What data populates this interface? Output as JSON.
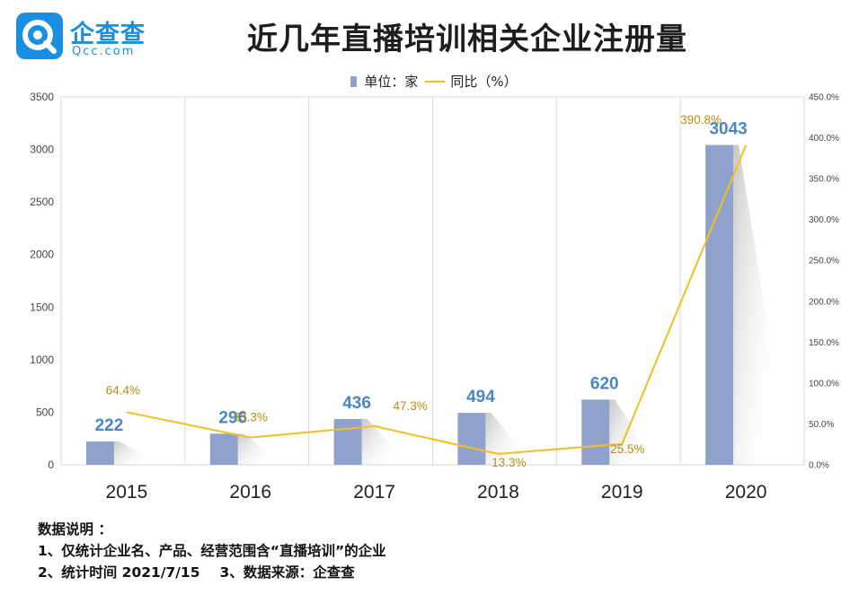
{
  "logo": {
    "name": "企查查",
    "domain": "Qcc.com"
  },
  "title": "近几年直播培训相关企业注册量",
  "colors": {
    "bar": "#8ea2cc",
    "line": "#f0bf23",
    "bar_label": "#4a86c5",
    "line_label": "#b58f12",
    "logo": "#1a8ee0"
  },
  "chart_data": {
    "type": "bar",
    "categories": [
      "2015",
      "2016",
      "2017",
      "2018",
      "2019",
      "2020"
    ],
    "series": [
      {
        "name": "单位：家",
        "type": "bar",
        "axis": "left",
        "values": [
          222,
          296,
          436,
          494,
          620,
          3043
        ],
        "labels": [
          "222",
          "296",
          "436",
          "494",
          "620",
          "3043"
        ]
      },
      {
        "name": "同比（%）",
        "type": "line",
        "axis": "right",
        "values": [
          64.4,
          33.3,
          47.3,
          13.3,
          25.5,
          390.8
        ],
        "labels": [
          "64.4%",
          "33.3%",
          "47.3%",
          "13.3%",
          "25.5%",
          "390.8%"
        ]
      }
    ],
    "y_left": {
      "range": [
        0,
        3500
      ],
      "ticks": [
        "0",
        "500",
        "1000",
        "1500",
        "2000",
        "2500",
        "3000",
        "3500"
      ]
    },
    "y_right": {
      "range": [
        0,
        450
      ],
      "ticks": [
        "0.0%",
        "50.0%",
        "100.0%",
        "150.0%",
        "200.0%",
        "250.0%",
        "300.0%",
        "350.0%",
        "400.0%",
        "450.0%"
      ]
    },
    "legend_position": "top-center",
    "grid": "vertical"
  },
  "notes": {
    "heading": "数据说明 ：",
    "line1": "1、仅统计企业名、产品、经营范围含“直播培训”的企业",
    "line2a": "2、统计时间 2021/7/15",
    "line2b": "3、数据来源：企查查"
  }
}
